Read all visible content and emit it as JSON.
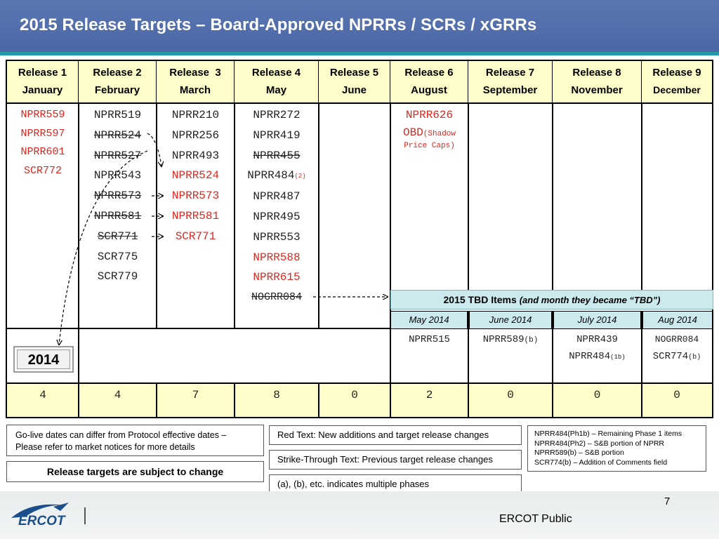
{
  "title": "2015 Release Targets – Board-Approved NPRRs / SCRs / xGRRs",
  "releases": [
    {
      "line1": "Release 1",
      "line2": "January"
    },
    {
      "line1": "Release 2",
      "line2": "February"
    },
    {
      "line1": "Release  3",
      "line2": "March"
    },
    {
      "line1": "Release 4",
      "line2": "May"
    },
    {
      "line1": "Release 5",
      "line2": "June"
    },
    {
      "line1": "Release 6",
      "line2": "August"
    },
    {
      "line1": "Release 7",
      "line2": "September"
    },
    {
      "line1": "Release 8",
      "line2": "November"
    },
    {
      "line1": "Release 9",
      "line2": "December"
    }
  ],
  "r1_items": [
    "NPRR559",
    "NPRR597",
    "NPRR601",
    "SCR772"
  ],
  "r2_items": [
    "NPRR519",
    "NPRR524",
    "NPRR527",
    "NPRR543",
    "NPRR573",
    "NPRR581",
    "SCR771",
    "SCR775",
    "SCR779"
  ],
  "r3_items": [
    "NPRR210",
    "NPRR256",
    "NPRR493",
    "NPRR524",
    "NPRR573",
    "NPRR581",
    "SCR771"
  ],
  "r4_items": [
    "NPRR272",
    "NPRR419",
    "NPRR455",
    "NPRR484",
    "NPRR487",
    "NPRR495",
    "NPRR553",
    "NPRR588",
    "NPRR615",
    "NOGRR084"
  ],
  "r4_note": "(2)",
  "r6_items": {
    "a": "NPRR626",
    "b": "OBD",
    "b_note1": "(Shadow",
    "b_note2": "Price Caps)"
  },
  "tbd": {
    "title": "2015 TBD Items ",
    "subtitle": "(and month they became “TBD”)",
    "months": [
      "May 2014",
      "June 2014",
      "July 2014",
      "Aug 2014"
    ],
    "may": [
      "NPRR515"
    ],
    "june": {
      "id": "NPRR589",
      "note": "(b)"
    },
    "july": [
      {
        "id": "NPRR439",
        "note": ""
      },
      {
        "id": "NPRR484",
        "note": "(1b)"
      }
    ],
    "aug": [
      {
        "id": "NOGRR084",
        "note": ""
      },
      {
        "id": "SCR774",
        "note": "(b)"
      }
    ]
  },
  "year_label": "2014",
  "counts": [
    "4",
    "4",
    "7",
    "8",
    "0",
    "2",
    "0",
    "0",
    "0"
  ],
  "notes": {
    "golive_1": "Go-live dates can differ from Protocol effective dates –",
    "golive_2": "Please refer to market notices for more details",
    "subject": "Release targets are subject to change",
    "red": "Red Text: New additions and target release changes",
    "strike": "Strike-Through Text: Previous target release changes",
    "phases": "(a), (b), etc. indicates multiple phases",
    "legend": [
      "NPRR484(Ph1b) – Remaining Phase 1 items",
      "NPRR484(Ph2) – S&B portion of NPRR",
      "NPRR589(b) – S&B portion",
      "SCR774(b) – Addition of Comments field"
    ]
  },
  "footer": {
    "page": "7",
    "public": "ERCOT Public",
    "logo": "ERCOT"
  },
  "colors": {
    "title_bar": "#4b66a4",
    "accent_rule": "#1f9aa6",
    "header_fill": "#fefeca",
    "tbd_fill": "#cce9ed",
    "red_text": "#e0261f"
  }
}
